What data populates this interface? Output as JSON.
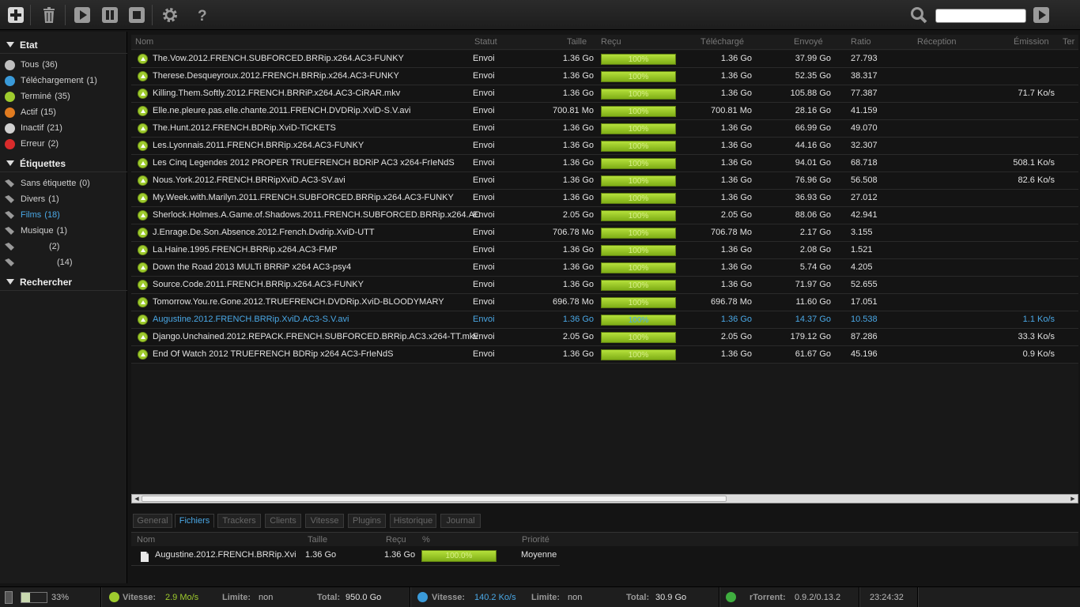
{
  "toolbar": {
    "icons": [
      "add-icon",
      "trash-icon",
      "play-icon",
      "pause-icon",
      "stop-icon",
      "gear-icon",
      "help-icon",
      "search-icon",
      "go-arrow-icon"
    ],
    "search_value": ""
  },
  "sidebar": {
    "sections": {
      "state": "Etat",
      "labels": "Étiquettes",
      "search": "Rechercher"
    },
    "state_items": [
      {
        "label": "Tous",
        "count": "(36)",
        "color": "#bfbfbf"
      },
      {
        "label": "Téléchargement",
        "count": "(1)",
        "color": "#3a9ad9"
      },
      {
        "label": "Terminé",
        "count": "(35)",
        "color": "#9ecb2e"
      },
      {
        "label": "Actif",
        "count": "(15)",
        "color": "#e07b20"
      },
      {
        "label": "Inactif",
        "count": "(21)",
        "color": "#d0d0d0"
      },
      {
        "label": "Erreur",
        "count": "(2)",
        "color": "#d92b2b"
      }
    ],
    "label_items": [
      {
        "label": "Sans étiquette",
        "count": "(0)"
      },
      {
        "label": "Divers",
        "count": "(1)"
      },
      {
        "label": "Films",
        "count": "(18)",
        "active": true
      },
      {
        "label": "Musique",
        "count": "(1)"
      },
      {
        "label": "",
        "count": "(2)"
      },
      {
        "label": "",
        "count": "(14)"
      }
    ]
  },
  "list": {
    "columns": [
      "Nom",
      "Statut",
      "Taille",
      "Reçu",
      "Téléchargé",
      "Envoyé",
      "Ratio",
      "Réception",
      "Émission",
      "Ter"
    ],
    "rows": [
      {
        "name": "The.Vow.2012.FRENCH.SUBFORCED.BRRip.x264.AC3-FUNKY",
        "status": "Envoi",
        "size": "1.36 Go",
        "progress": "100%",
        "downloaded": "1.36 Go",
        "uploaded": "37.99 Go",
        "ratio": "27.793",
        "down_speed": "",
        "up_speed": ""
      },
      {
        "name": "Therese.Desqueyroux.2012.FRENCH.BRRip.x264.AC3-FUNKY",
        "status": "Envoi",
        "size": "1.36 Go",
        "progress": "100%",
        "downloaded": "1.36 Go",
        "uploaded": "52.35 Go",
        "ratio": "38.317",
        "down_speed": "",
        "up_speed": ""
      },
      {
        "name": "Killing.Them.Softly.2012.FRENCH.BRRiP.x264.AC3-CiRAR.mkv",
        "status": "Envoi",
        "size": "1.36 Go",
        "progress": "100%",
        "downloaded": "1.36 Go",
        "uploaded": "105.88 Go",
        "ratio": "77.387",
        "down_speed": "",
        "up_speed": "71.7 Ko/s"
      },
      {
        "name": "Elle.ne.pleure.pas.elle.chante.2011.FRENCH.DVDRip.XviD-S.V.avi",
        "status": "Envoi",
        "size": "700.81 Mo",
        "progress": "100%",
        "downloaded": "700.81 Mo",
        "uploaded": "28.16 Go",
        "ratio": "41.159",
        "down_speed": "",
        "up_speed": ""
      },
      {
        "name": "The.Hunt.2012.FRENCH.BDRip.XviD-TiCKETS",
        "status": "Envoi",
        "size": "1.36 Go",
        "progress": "100%",
        "downloaded": "1.36 Go",
        "uploaded": "66.99 Go",
        "ratio": "49.070",
        "down_speed": "",
        "up_speed": ""
      },
      {
        "name": "Les.Lyonnais.2011.FRENCH.BRRip.x264.AC3-FUNKY",
        "status": "Envoi",
        "size": "1.36 Go",
        "progress": "100%",
        "downloaded": "1.36 Go",
        "uploaded": "44.16 Go",
        "ratio": "32.307",
        "down_speed": "",
        "up_speed": ""
      },
      {
        "name": "Les Cinq Legendes 2012 PROPER TRUEFRENCH BDRiP AC3 x264-FrIeNdS",
        "status": "Envoi",
        "size": "1.36 Go",
        "progress": "100%",
        "downloaded": "1.36 Go",
        "uploaded": "94.01 Go",
        "ratio": "68.718",
        "down_speed": "",
        "up_speed": "508.1 Ko/s"
      },
      {
        "name": "Nous.York.2012.FRENCH.BRRipXviD.AC3-SV.avi",
        "status": "Envoi",
        "size": "1.36 Go",
        "progress": "100%",
        "downloaded": "1.36 Go",
        "uploaded": "76.96 Go",
        "ratio": "56.508",
        "down_speed": "",
        "up_speed": "82.6 Ko/s"
      },
      {
        "name": "My.Week.with.Marilyn.2011.FRENCH.SUBFORCED.BRRip.x264.AC3-FUNKY",
        "status": "Envoi",
        "size": "1.36 Go",
        "progress": "100%",
        "downloaded": "1.36 Go",
        "uploaded": "36.93 Go",
        "ratio": "27.012",
        "down_speed": "",
        "up_speed": ""
      },
      {
        "name": "Sherlock.Holmes.A.Game.of.Shadows.2011.FRENCH.SUBFORCED.BRRip.x264.AC",
        "status": "Envoi",
        "size": "2.05 Go",
        "progress": "100%",
        "downloaded": "2.05 Go",
        "uploaded": "88.06 Go",
        "ratio": "42.941",
        "down_speed": "",
        "up_speed": ""
      },
      {
        "name": "J.Enrage.De.Son.Absence.2012.French.Dvdrip.XviD-UTT",
        "status": "Envoi",
        "size": "706.78 Mo",
        "progress": "100%",
        "downloaded": "706.78 Mo",
        "uploaded": "2.17 Go",
        "ratio": "3.155",
        "down_speed": "",
        "up_speed": ""
      },
      {
        "name": "La.Haine.1995.FRENCH.BRRip.x264.AC3-FMP",
        "status": "Envoi",
        "size": "1.36 Go",
        "progress": "100%",
        "downloaded": "1.36 Go",
        "uploaded": "2.08 Go",
        "ratio": "1.521",
        "down_speed": "",
        "up_speed": ""
      },
      {
        "name": "Down the Road 2013 MULTi BRRiP x264 AC3-psy4",
        "status": "Envoi",
        "size": "1.36 Go",
        "progress": "100%",
        "downloaded": "1.36 Go",
        "uploaded": "5.74 Go",
        "ratio": "4.205",
        "down_speed": "",
        "up_speed": ""
      },
      {
        "name": "Source.Code.2011.FRENCH.BRRip.x264.AC3-FUNKY",
        "status": "Envoi",
        "size": "1.36 Go",
        "progress": "100%",
        "downloaded": "1.36 Go",
        "uploaded": "71.97 Go",
        "ratio": "52.655",
        "down_speed": "",
        "up_speed": ""
      },
      {
        "name": "Tomorrow.You.re.Gone.2012.TRUEFRENCH.DVDRip.XviD-BLOODYMARY",
        "status": "Envoi",
        "size": "696.78 Mo",
        "progress": "100%",
        "downloaded": "696.78 Mo",
        "uploaded": "11.60 Go",
        "ratio": "17.051",
        "down_speed": "",
        "up_speed": ""
      },
      {
        "name": "Augustine.2012.FRENCH.BRRip.XviD.AC3-S.V.avi",
        "status": "Envoi",
        "size": "1.36 Go",
        "progress": "100%",
        "downloaded": "1.36 Go",
        "uploaded": "14.37 Go",
        "ratio": "10.538",
        "down_speed": "",
        "up_speed": "1.1 Ko/s",
        "selected": true
      },
      {
        "name": "Django.Unchained.2012.REPACK.FRENCH.SUBFORCED.BRRip.AC3.x264-TT.mkv",
        "status": "Envoi",
        "size": "2.05 Go",
        "progress": "100%",
        "downloaded": "2.05 Go",
        "uploaded": "179.12 Go",
        "ratio": "87.286",
        "down_speed": "",
        "up_speed": "33.3 Ko/s"
      },
      {
        "name": "End Of Watch 2012 TRUEFRENCH BDRip x264 AC3-FrIeNdS",
        "status": "Envoi",
        "size": "1.36 Go",
        "progress": "100%",
        "downloaded": "1.36 Go",
        "uploaded": "61.67 Go",
        "ratio": "45.196",
        "down_speed": "",
        "up_speed": "0.9 Ko/s"
      }
    ]
  },
  "details": {
    "tabs": [
      "General",
      "Fichiers",
      "Trackers",
      "Clients",
      "Vitesse",
      "Plugins",
      "Historique",
      "Journal"
    ],
    "active_tab": "Fichiers",
    "columns": [
      "Nom",
      "Taille",
      "Reçu",
      "%",
      "Priorité"
    ],
    "file": {
      "name": "Augustine.2012.FRENCH.BRRip.Xvi",
      "size": "1.36 Go",
      "received": "1.36 Go",
      "percent": "100.0%",
      "priority": "Moyenne"
    }
  },
  "statusbar": {
    "disk_percent": "33%",
    "disk_fraction": 0.33,
    "down": {
      "label": "Vitesse:",
      "value": "2.9 Mo/s",
      "limit_label": "Limite:",
      "limit": "non",
      "total_label": "Total:",
      "total": "950.0 Go"
    },
    "up": {
      "label": "Vitesse:",
      "value": "140.2 Ko/s",
      "limit_label": "Limite:",
      "limit": "non",
      "total_label": "Total:",
      "total": "30.9 Go"
    },
    "client_label": "rTorrent:",
    "client_version": "0.9.2/0.13.2",
    "clock": "23:24:32"
  },
  "colors": {
    "accent_blue": "#4aa8e6",
    "accent_green": "#9ecb2e"
  }
}
